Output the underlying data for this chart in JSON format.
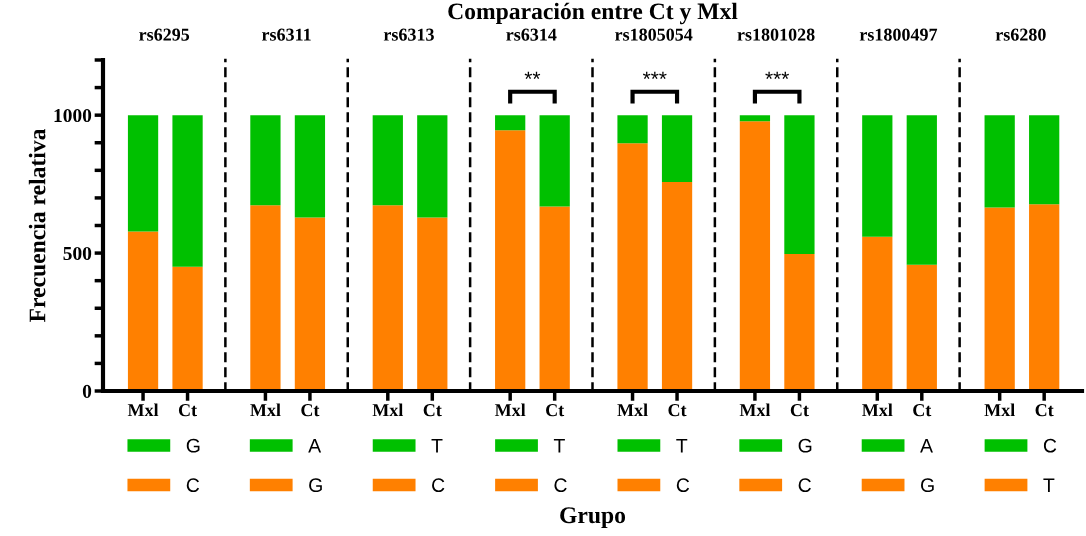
{
  "chart_data": [
    {
      "type": "bar",
      "stacked": true,
      "title": "rs6295",
      "ylabel": "Frecuencia relativa",
      "annotations": [
        "Comparación entre Ct y Mxl",
        "Grupo"
      ],
      "categories": [
        "Mxl",
        "Ct"
      ],
      "ylim": [
        0,
        1200
      ],
      "yticks": [
        0,
        {
          "value": 100,
          "label": null
        },
        {
          "value": 200,
          "label": null
        },
        {
          "value": 300,
          "label": null
        },
        {
          "value": 400,
          "label": null
        },
        500,
        {
          "value": 600,
          "label": null
        },
        {
          "value": 700,
          "label": null
        },
        {
          "value": 800,
          "label": null
        },
        {
          "value": 900,
          "label": null
        },
        1000,
        {
          "value": 1100,
          "label": null
        },
        {
          "value": 1200,
          "label": null
        }
      ],
      "legend": "bottom",
      "grid": false,
      "series": [
        {
          "name": "C",
          "color": "#ff8000",
          "values": [
            578,
            450
          ]
        },
        {
          "name": "G",
          "color": "#00c000",
          "values": [
            422,
            550
          ]
        }
      ]
    },
    {
      "type": "bar",
      "stacked": true,
      "title": "rs6311",
      "categories": [
        "Mxl",
        "Ct"
      ],
      "ylim": [
        0,
        1200
      ],
      "tick_labels": "x",
      "legend": "bottom",
      "grid": false,
      "series": [
        {
          "name": "G",
          "color": "#ff8000",
          "values": [
            673,
            629
          ]
        },
        {
          "name": "A",
          "color": "#00c000",
          "values": [
            327,
            371
          ]
        }
      ]
    },
    {
      "type": "bar",
      "stacked": true,
      "title": "rs6313",
      "categories": [
        "Mxl",
        "Ct"
      ],
      "ylim": [
        0,
        1200
      ],
      "tick_labels": "x",
      "legend": "bottom",
      "grid": false,
      "series": [
        {
          "name": "C",
          "color": "#ff8000",
          "values": [
            673,
            629
          ]
        },
        {
          "name": "T",
          "color": "#00c000",
          "values": [
            327,
            371
          ]
        }
      ]
    },
    {
      "type": "bar",
      "stacked": true,
      "title": "rs6314",
      "categories": [
        "Mxl",
        "Ct"
      ],
      "ylim": [
        0,
        1200
      ],
      "tick_labels": "x",
      "legend": "bottom",
      "grid": false,
      "annotations": [
        "**"
      ],
      "series": [
        {
          "name": "C",
          "color": "#ff8000",
          "values": [
            945,
            669
          ]
        },
        {
          "name": "T",
          "color": "#00c000",
          "values": [
            55,
            331
          ]
        }
      ]
    },
    {
      "type": "bar",
      "stacked": true,
      "title": "rs1805054",
      "categories": [
        "Mxl",
        "Ct"
      ],
      "ylim": [
        0,
        1200
      ],
      "tick_labels": "x",
      "legend": "bottom",
      "grid": false,
      "annotations": [
        "***"
      ],
      "series": [
        {
          "name": "C",
          "color": "#ff8000",
          "values": [
            898,
            758
          ]
        },
        {
          "name": "T",
          "color": "#00c000",
          "values": [
            102,
            242
          ]
        }
      ]
    },
    {
      "type": "bar",
      "stacked": true,
      "title": "rs1801028",
      "categories": [
        "Mxl",
        "Ct"
      ],
      "ylim": [
        0,
        1200
      ],
      "tick_labels": "x",
      "legend": "bottom",
      "grid": false,
      "annotations": [
        "***"
      ],
      "series": [
        {
          "name": "C",
          "color": "#ff8000",
          "values": [
            978,
            497
          ]
        },
        {
          "name": "G",
          "color": "#00c000",
          "values": [
            22,
            503
          ]
        }
      ]
    },
    {
      "type": "bar",
      "stacked": true,
      "title": "rs1800497",
      "categories": [
        "Mxl",
        "Ct"
      ],
      "ylim": [
        0,
        1200
      ],
      "tick_labels": "x",
      "legend": "bottom",
      "grid": false,
      "series": [
        {
          "name": "G",
          "color": "#ff8000",
          "values": [
            559,
            458
          ]
        },
        {
          "name": "A",
          "color": "#00c000",
          "values": [
            441,
            542
          ]
        }
      ]
    },
    {
      "type": "bar",
      "stacked": true,
      "title": "rs6280",
      "categories": [
        "Mxl",
        "Ct"
      ],
      "ylim": [
        0,
        1200
      ],
      "tick_labels": "x",
      "legend": "bottom",
      "grid": false,
      "series": [
        {
          "name": "T",
          "color": "#ff8000",
          "values": [
            665,
            677
          ]
        },
        {
          "name": "C",
          "color": "#00c000",
          "values": [
            335,
            323
          ]
        }
      ]
    }
  ]
}
